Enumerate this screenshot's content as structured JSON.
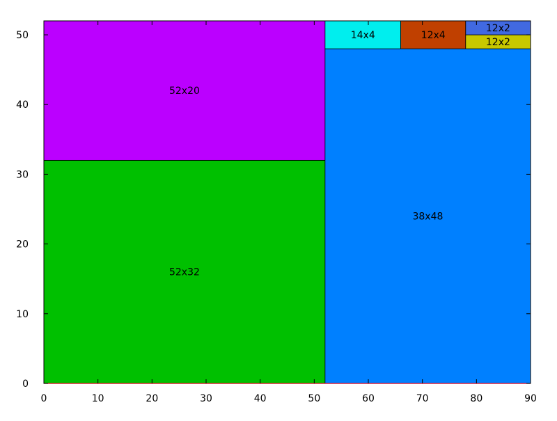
{
  "chart_data": {
    "type": "treemap",
    "title": "",
    "xlabel": "",
    "ylabel": "",
    "xlim": [
      0,
      90
    ],
    "ylim": [
      0,
      52
    ],
    "x_ticks": [
      0,
      10,
      20,
      30,
      40,
      50,
      60,
      70,
      80,
      90
    ],
    "y_ticks": [
      0,
      10,
      20,
      30,
      40,
      50
    ],
    "grid": false,
    "rects": [
      {
        "label": "52x32",
        "x": 0,
        "y": 0,
        "w": 52,
        "h": 32,
        "color": "#00c000"
      },
      {
        "label": "52x20",
        "x": 0,
        "y": 32,
        "w": 52,
        "h": 20,
        "color": "#bb00ff"
      },
      {
        "label": "38x48",
        "x": 52,
        "y": 0,
        "w": 38,
        "h": 48,
        "color": "#0080ff"
      },
      {
        "label": "14x4",
        "x": 52,
        "y": 48,
        "w": 14,
        "h": 4,
        "color": "#00eeee"
      },
      {
        "label": "12x4",
        "x": 66,
        "y": 48,
        "w": 12,
        "h": 4,
        "color": "#c04000"
      },
      {
        "label": "12x2",
        "x": 78,
        "y": 48,
        "w": 12,
        "h": 2,
        "color": "#c8c800"
      },
      {
        "label": "12x2",
        "x": 78,
        "y": 50,
        "w": 12,
        "h": 2,
        "color": "#4169e1"
      }
    ],
    "baseline_color": "#e0001a"
  }
}
